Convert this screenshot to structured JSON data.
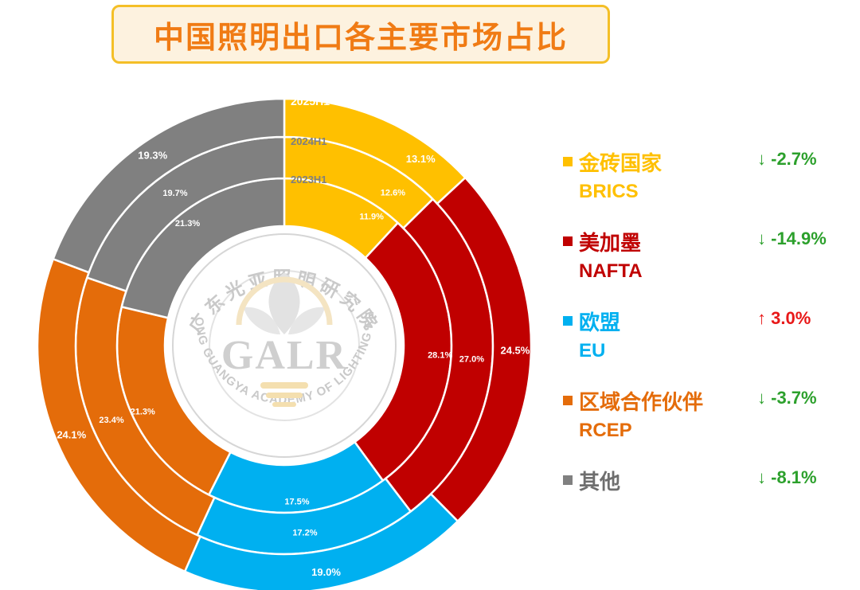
{
  "title": "中国照明出口各主要市场占比",
  "chart_data": {
    "type": "pie",
    "subtype": "multi-ring donut",
    "rings": [
      {
        "name": "2023H1",
        "values": [
          11.9,
          28.1,
          17.5,
          21.3,
          21.3
        ]
      },
      {
        "name": "2024H1",
        "values": [
          12.6,
          27.0,
          17.2,
          23.4,
          19.7
        ]
      },
      {
        "name": "2025H1",
        "values": [
          13.1,
          24.5,
          19.0,
          24.1,
          19.3
        ]
      }
    ],
    "categories": [
      "金砖国家",
      "美加墨",
      "欧盟",
      "区域合作伙伴",
      "其他"
    ],
    "value_labels": {
      "2023H1": [
        "11.9%",
        "28.1%",
        "17.5%",
        "21.3%",
        "21.3%"
      ],
      "2024H1": [
        "12.6%",
        "27.0%",
        "17.2%",
        "23.4%",
        "19.7%"
      ],
      "2025H1": [
        "13.1%",
        "24.5%",
        "19.0%",
        "24.1%",
        "19.3%"
      ]
    }
  },
  "legend": [
    {
      "name": "金砖国家",
      "en": "BRICS",
      "color": "#ffc000",
      "change": "↓ -2.7%",
      "change_color": "#2ca02c"
    },
    {
      "name": "美加墨",
      "en": "NAFTA",
      "color": "#c00000",
      "change": "↓ -14.9%",
      "change_color": "#2ca02c"
    },
    {
      "name": "欧盟",
      "en": "EU",
      "color": "#00b0f0",
      "change": "↑ 3.0%",
      "change_color": "#e81818"
    },
    {
      "name": "区域合作伙伴",
      "en": "RCEP",
      "color": "#e46c0a",
      "change": "↓ -3.7%",
      "change_color": "#2ca02c"
    },
    {
      "name": "其他",
      "en": "",
      "color": "#808080",
      "change": "↓ -8.1%",
      "change_color": "#2ca02c"
    }
  ],
  "logo": {
    "name_cn": "广东光亚照明研究院",
    "abbr": "GALR",
    "name_en": "GUANG DONG GUANGYA ACADEMY OF LIGHTING RESEARCH"
  }
}
